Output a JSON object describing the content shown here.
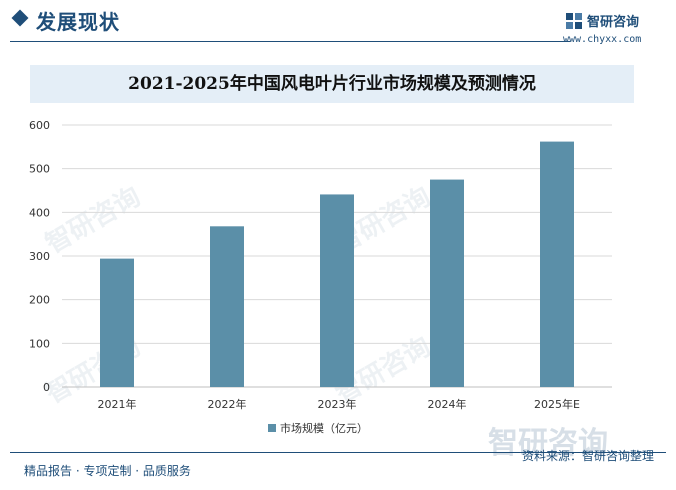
{
  "header": {
    "section_title": "发展现状",
    "brand_name": "智研咨询",
    "brand_url": "www.chyxx.com"
  },
  "chart_data": {
    "type": "bar",
    "title": "2021-2025年中国风电叶片行业市场规模及预测情况",
    "categories": [
      "2021年",
      "2022年",
      "2023年",
      "2024年",
      "2025年E"
    ],
    "series": [
      {
        "name": "市场规模（亿元）",
        "values": [
          294,
          368,
          441,
          475,
          562
        ]
      }
    ],
    "ylim": [
      0,
      600
    ],
    "yticks": [
      0,
      100,
      200,
      300,
      400,
      500,
      600
    ],
    "grid": true,
    "legend": "bottom",
    "bar_color": "#5b8fa8"
  },
  "footer": {
    "left": "精品报告 · 专项定制 · 品质服务",
    "source": "资料来源：智研咨询整理"
  },
  "watermark": "智研咨询"
}
